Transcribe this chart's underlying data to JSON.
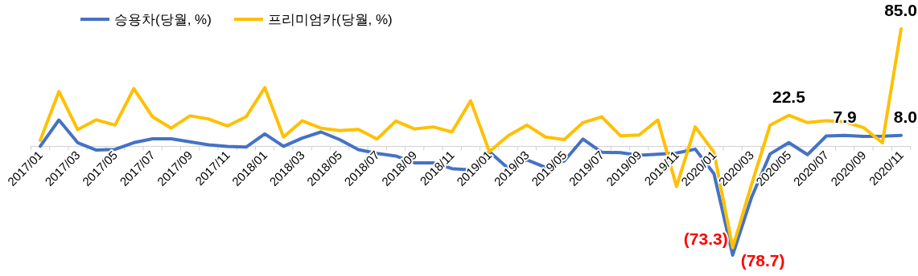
{
  "chart_data": {
    "type": "line",
    "categories": [
      "2017/01",
      null,
      "2017/03",
      null,
      "2017/05",
      null,
      "2017/07",
      null,
      "2017/09",
      null,
      "2017/11",
      null,
      "2018/01",
      null,
      "2018/03",
      null,
      "2018/05",
      null,
      "2018/07",
      null,
      "2018/09",
      null,
      "2018/11",
      null,
      "2019/01",
      null,
      "2019/03",
      null,
      "2019/05",
      null,
      "2019/07",
      null,
      "2019/09",
      null,
      "2019/11",
      null,
      "2020/01",
      null,
      "2020/03",
      null,
      "2020/05",
      null,
      "2020/07",
      null,
      "2020/09",
      null,
      "2020/11"
    ],
    "series": [
      {
        "name": "승용차(당월, %)",
        "color": "#4472c4",
        "values": [
          0,
          19.1,
          2.7,
          -2.7,
          -2.2,
          2.7,
          5.5,
          5.5,
          3.3,
          1.1,
          0,
          -0.5,
          9.0,
          0,
          6.0,
          10.4,
          4.9,
          -2.4,
          -5.1,
          -7.0,
          -11.9,
          -11.9,
          -16.1,
          -17.0,
          -3.8,
          -15.9,
          -9.7,
          -15.2,
          -10.6,
          5.3,
          -4.2,
          -4.6,
          -6.4,
          -5.7,
          -4.8,
          -2.0,
          -19.8,
          -78.7,
          -37.2,
          -5.5,
          2.7,
          -6.0,
          7.5,
          7.9,
          7.2,
          7.4,
          8.0
        ],
        "value_labels": [
          null,
          null,
          null,
          null,
          null,
          null,
          null,
          null,
          null,
          null,
          null,
          null,
          null,
          null,
          null,
          null,
          null,
          null,
          null,
          null,
          null,
          null,
          null,
          null,
          null,
          null,
          null,
          null,
          null,
          null,
          null,
          null,
          null,
          null,
          null,
          null,
          null,
          "(78.7)",
          null,
          null,
          null,
          null,
          null,
          "7.9",
          null,
          null,
          "8.0"
        ]
      },
      {
        "name": "프리미엄카(당월, %)",
        "color": "#ffc000",
        "values": [
          4.4,
          39.7,
          12.1,
          19.2,
          15.4,
          41.8,
          21.4,
          13.2,
          22.1,
          19.8,
          14.8,
          21.4,
          42.5,
          6.8,
          18.5,
          13.2,
          11.4,
          12.3,
          5.3,
          18.3,
          12.6,
          14.1,
          10.4,
          33.0,
          -3.8,
          7.7,
          15.4,
          6.8,
          4.9,
          17.2,
          21.4,
          7.7,
          8.2,
          19.1,
          -29.0,
          14.1,
          -4.2,
          -73.3,
          -28.0,
          15.4,
          22.5,
          17.2,
          18.6,
          17.8,
          13.5,
          2.6,
          85.0
        ],
        "value_labels": [
          null,
          null,
          null,
          null,
          null,
          null,
          null,
          null,
          null,
          null,
          null,
          null,
          null,
          null,
          null,
          null,
          null,
          null,
          null,
          null,
          null,
          null,
          null,
          null,
          null,
          null,
          null,
          null,
          null,
          null,
          null,
          null,
          null,
          null,
          null,
          null,
          null,
          "(73.3)",
          null,
          null,
          "22.5",
          null,
          null,
          null,
          null,
          null,
          "85.0"
        ]
      }
    ],
    "legend": "top left",
    "grid": false,
    "marker": "none",
    "line_style": "solid"
  }
}
